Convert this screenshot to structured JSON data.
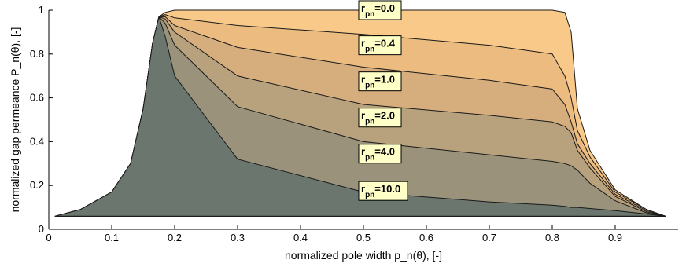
{
  "chart_data": {
    "type": "area",
    "xlabel": "normalized pole width p_n(θ), [-]",
    "ylabel": "normalized gap permeance P_n(θ), [-]",
    "xlim": [
      0,
      1.0
    ],
    "ylim": [
      0,
      1.0
    ],
    "x_ticks": [
      "0",
      "0.1",
      "0.2",
      "0.3",
      "0.4",
      "0.5",
      "0.6",
      "0.7",
      "0.8",
      "0.9"
    ],
    "x_tick_values": [
      0,
      0.1,
      0.2,
      0.3,
      0.4,
      0.5,
      0.6,
      0.7,
      0.8,
      0.9
    ],
    "y_ticks": [
      "0",
      "0.2",
      "0.4",
      "0.6",
      "0.8",
      "1"
    ],
    "y_tick_values": [
      0,
      0.2,
      0.4,
      0.6,
      0.8,
      1.0
    ],
    "grid": false,
    "series": [
      {
        "name": "r_pn=0.0",
        "fill": "#f9c98a",
        "x": [
          0.01,
          0.05,
          0.1,
          0.13,
          0.15,
          0.165,
          0.175,
          0.185,
          0.2,
          0.3,
          0.5,
          0.7,
          0.8,
          0.82,
          0.83,
          0.84,
          0.86,
          0.9,
          0.95,
          0.98
        ],
        "y": [
          0.06,
          0.09,
          0.17,
          0.3,
          0.55,
          0.85,
          0.97,
          0.99,
          1.0,
          1.0,
          1.0,
          1.0,
          1.0,
          0.99,
          0.9,
          0.55,
          0.36,
          0.18,
          0.09,
          0.06
        ]
      },
      {
        "name": "r_pn=0.4",
        "fill": "#ebbb80",
        "x": [
          0.01,
          0.05,
          0.1,
          0.13,
          0.15,
          0.165,
          0.175,
          0.185,
          0.2,
          0.3,
          0.5,
          0.7,
          0.8,
          0.82,
          0.83,
          0.84,
          0.86,
          0.9,
          0.95,
          0.98
        ],
        "y": [
          0.06,
          0.09,
          0.17,
          0.3,
          0.55,
          0.85,
          0.97,
          0.98,
          0.965,
          0.93,
          0.89,
          0.84,
          0.8,
          0.7,
          0.6,
          0.45,
          0.33,
          0.17,
          0.09,
          0.06
        ]
      },
      {
        "name": "r_pn=1.0",
        "fill": "#d6ad7c",
        "x": [
          0.01,
          0.05,
          0.1,
          0.13,
          0.15,
          0.165,
          0.175,
          0.185,
          0.2,
          0.3,
          0.5,
          0.7,
          0.8,
          0.82,
          0.83,
          0.84,
          0.86,
          0.9,
          0.95,
          0.98
        ],
        "y": [
          0.06,
          0.09,
          0.17,
          0.3,
          0.55,
          0.85,
          0.97,
          0.97,
          0.93,
          0.83,
          0.74,
          0.68,
          0.64,
          0.57,
          0.49,
          0.39,
          0.3,
          0.16,
          0.085,
          0.06
        ]
      },
      {
        "name": "r_pn=2.0",
        "fill": "#b7a27d",
        "x": [
          0.01,
          0.05,
          0.1,
          0.13,
          0.15,
          0.165,
          0.175,
          0.185,
          0.2,
          0.3,
          0.5,
          0.7,
          0.8,
          0.82,
          0.83,
          0.84,
          0.86,
          0.9,
          0.95,
          0.98
        ],
        "y": [
          0.06,
          0.09,
          0.17,
          0.3,
          0.55,
          0.85,
          0.97,
          0.96,
          0.9,
          0.7,
          0.57,
          0.52,
          0.49,
          0.47,
          0.44,
          0.36,
          0.28,
          0.15,
          0.08,
          0.06
        ]
      },
      {
        "name": "r_pn=4.0",
        "fill": "#9a927a",
        "x": [
          0.01,
          0.05,
          0.1,
          0.13,
          0.15,
          0.165,
          0.175,
          0.185,
          0.2,
          0.3,
          0.5,
          0.7,
          0.8,
          0.82,
          0.83,
          0.84,
          0.86,
          0.9,
          0.95,
          0.98
        ],
        "y": [
          0.06,
          0.09,
          0.17,
          0.3,
          0.55,
          0.85,
          0.97,
          0.94,
          0.84,
          0.56,
          0.4,
          0.34,
          0.31,
          0.3,
          0.29,
          0.27,
          0.21,
          0.13,
          0.075,
          0.06
        ]
      },
      {
        "name": "r_pn=10.0",
        "fill": "#6b776e",
        "x": [
          0.01,
          0.05,
          0.1,
          0.13,
          0.15,
          0.165,
          0.175,
          0.185,
          0.2,
          0.3,
          0.5,
          0.7,
          0.8,
          0.82,
          0.83,
          0.84,
          0.86,
          0.9,
          0.95,
          0.98
        ],
        "y": [
          0.06,
          0.09,
          0.17,
          0.3,
          0.55,
          0.85,
          0.97,
          0.88,
          0.7,
          0.32,
          0.17,
          0.125,
          0.11,
          0.105,
          0.1,
          0.1,
          0.095,
          0.085,
          0.07,
          0.06
        ]
      }
    ],
    "annotations": [
      {
        "sub": "pn",
        "value": "=0.0",
        "x": 0.5,
        "y": 1.0
      },
      {
        "sub": "pn",
        "value": "=0.4",
        "x": 0.5,
        "y": 0.84
      },
      {
        "sub": "pn",
        "value": "=1.0",
        "x": 0.5,
        "y": 0.675
      },
      {
        "sub": "pn",
        "value": "=2.0",
        "x": 0.5,
        "y": 0.51
      },
      {
        "sub": "pn",
        "value": "=4.0",
        "x": 0.5,
        "y": 0.345
      },
      {
        "sub": "pn",
        "value": "=10.0",
        "x": 0.5,
        "y": 0.175
      }
    ],
    "annotation_letter": "r",
    "annotation_fill": "#ffffc8"
  }
}
